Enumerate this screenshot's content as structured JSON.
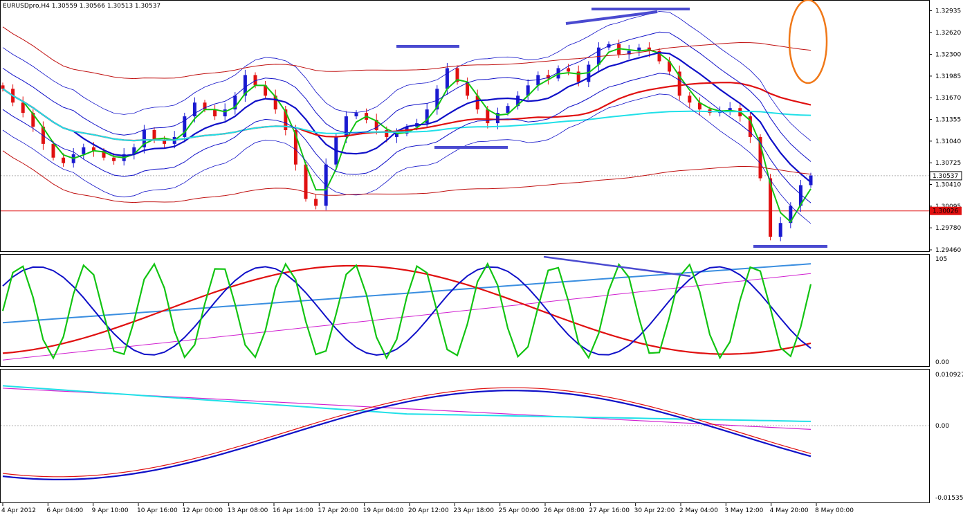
{
  "window": {
    "symbol_header": "EURUSDpro,H4  1.30559 1.30566 1.30513 1.30537"
  },
  "colors": {
    "bull": "#1a1ad0",
    "bear": "#e01010",
    "ma_fast": "#12c412",
    "ma_blue": "#1010c8",
    "envelope": "#c01010",
    "cyan": "#20e0e8",
    "blue_light": "#3a8ee0",
    "magenta": "#d020d0",
    "orange": "#f07818",
    "annot": "#4a4ad0"
  },
  "chart_data": [
    {
      "type": "candlestick",
      "name": "price",
      "y_ticks": [
        "1.32935",
        "1.32620",
        "1.32300",
        "1.31985",
        "1.31670",
        "1.31355",
        "1.31040",
        "1.30725",
        "1.30410",
        "1.30095",
        "1.29780",
        "1.29460"
      ],
      "ylim": [
        1.2946,
        1.33
      ],
      "current_price_label": "1.30537",
      "horizontal_line_label": "1.30026",
      "current_price": 1.30537,
      "horizontal_line": 1.30026,
      "x_labels": [
        "4 Apr 2012",
        "6 Apr 04:00",
        "9 Apr 10:00",
        "10 Apr 16:00",
        "12 Apr 00:00",
        "13 Apr 08:00",
        "16 Apr 14:00",
        "17 Apr 20:00",
        "19 Apr 04:00",
        "20 Apr 12:00",
        "23 Apr 18:00",
        "25 Apr 00:00",
        "26 Apr 08:00",
        "27 Apr 16:00",
        "30 Apr 22:00",
        "2 May 04:00",
        "3 May 12:00",
        "4 May 20:00",
        "8 May 00:00"
      ],
      "close_path": [
        1.318,
        1.316,
        1.3145,
        1.3125,
        1.31,
        1.308,
        1.3072,
        1.3085,
        1.3095,
        1.309,
        1.308,
        1.3075,
        1.3085,
        1.3095,
        1.312,
        1.3105,
        1.31,
        1.311,
        1.314,
        1.316,
        1.315,
        1.314,
        1.315,
        1.317,
        1.32,
        1.3185,
        1.317,
        1.315,
        1.312,
        1.307,
        1.302,
        1.301,
        1.307,
        1.311,
        1.314,
        1.3145,
        1.3135,
        1.312,
        1.311,
        1.3115,
        1.3125,
        1.313,
        1.315,
        1.318,
        1.321,
        1.319,
        1.317,
        1.315,
        1.313,
        1.3145,
        1.3155,
        1.317,
        1.3185,
        1.32,
        1.3195,
        1.321,
        1.3205,
        1.319,
        1.3215,
        1.324,
        1.3245,
        1.323,
        1.3235,
        1.324,
        1.3235,
        1.322,
        1.3205,
        1.317,
        1.316,
        1.315,
        1.3145,
        1.3148,
        1.3152,
        1.314,
        1.311,
        1.305,
        1.2965,
        1.2985,
        1.301,
        1.304,
        1.3054
      ],
      "high_low_marks": {
        "swing_high": 1.3293,
        "swing_low": 1.295
      }
    },
    {
      "type": "line",
      "name": "stochastic",
      "y_ticks": [
        "105",
        "0.00"
      ],
      "ylim": [
        0,
        105
      ]
    },
    {
      "type": "line",
      "name": "oscillator",
      "y_ticks": [
        "0.010927",
        "0.00",
        "-0.01535"
      ],
      "ylim": [
        -0.01535,
        0.010927
      ]
    }
  ]
}
